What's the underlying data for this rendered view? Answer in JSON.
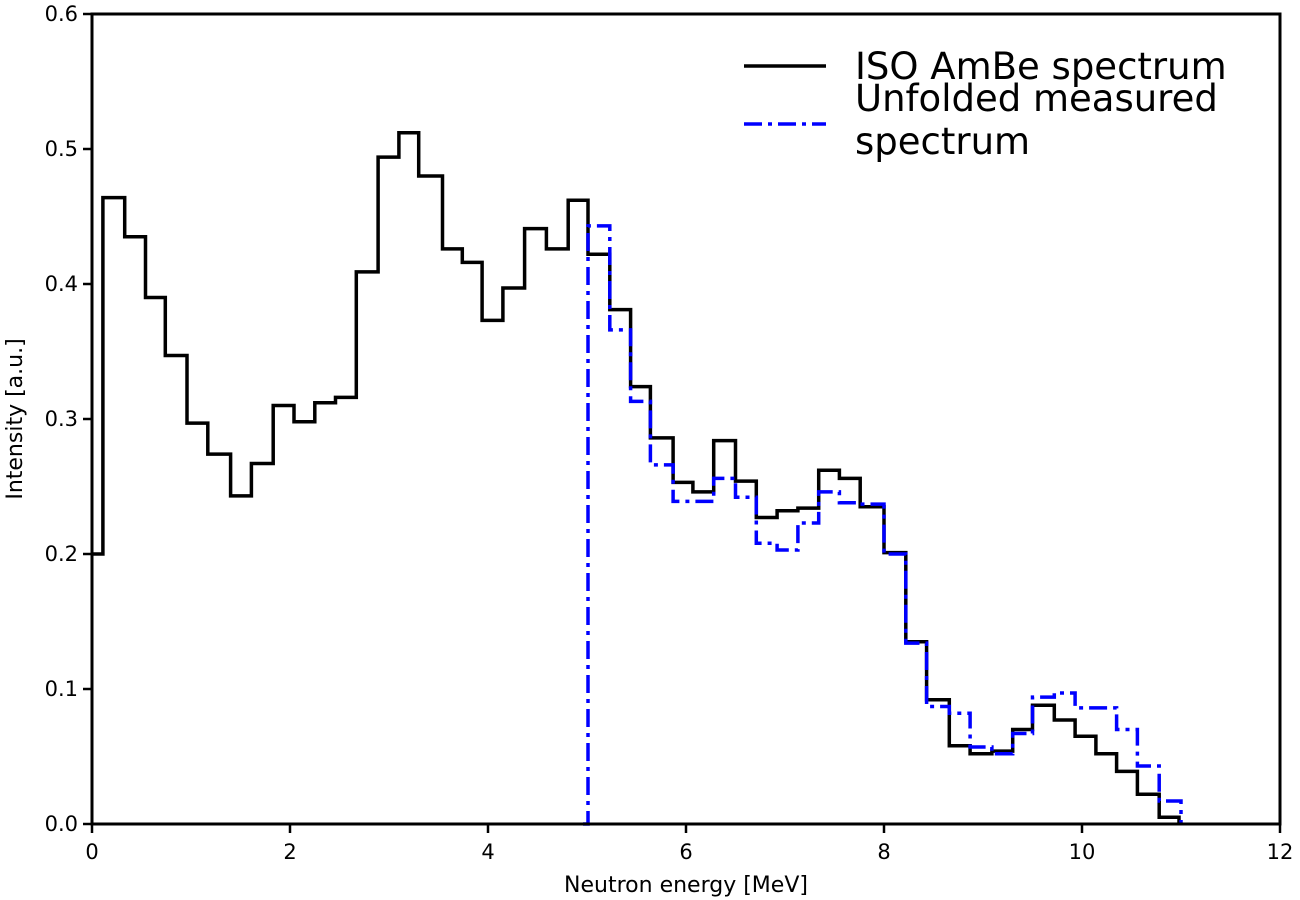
{
  "chart_data": {
    "type": "line",
    "step": "post",
    "xlabel": "Neutron energy [MeV]",
    "ylabel": "Intensity [a.u.]",
    "xlim": [
      0,
      12
    ],
    "ylim": [
      0,
      0.6
    ],
    "xticks": [
      0,
      2,
      4,
      6,
      8,
      10,
      12
    ],
    "yticks": [
      0.0,
      0.1,
      0.2,
      0.3,
      0.4,
      0.5,
      0.6
    ],
    "xtick_labels": [
      "0",
      "2",
      "4",
      "6",
      "8",
      "10",
      "12"
    ],
    "ytick_labels": [
      "0.0",
      "0.1",
      "0.2",
      "0.3",
      "0.4",
      "0.5",
      "0.6"
    ],
    "grid": false,
    "legend": "top-right",
    "series": [
      {
        "name": "ISO AmBe spectrum",
        "color": "#000000",
        "linestyle": "solid",
        "x": [
          0.0,
          0.11,
          0.33,
          0.54,
          0.74,
          0.96,
          1.17,
          1.4,
          1.61,
          1.83,
          2.04,
          2.25,
          2.46,
          2.67,
          2.89,
          3.1,
          3.3,
          3.54,
          3.74,
          3.94,
          4.15,
          4.37,
          4.59,
          4.81,
          5.01,
          5.23,
          5.44,
          5.64,
          5.87,
          6.07,
          6.28,
          6.5,
          6.71,
          6.92,
          7.13,
          7.34,
          7.55,
          7.76,
          8.0,
          8.22,
          8.43,
          8.66,
          8.87,
          9.09,
          9.3,
          9.5,
          9.72,
          9.93,
          10.14,
          10.35,
          10.56,
          10.78,
          10.98
        ],
        "y": [
          0.2,
          0.464,
          0.435,
          0.39,
          0.347,
          0.297,
          0.274,
          0.243,
          0.267,
          0.31,
          0.298,
          0.312,
          0.316,
          0.409,
          0.494,
          0.512,
          0.48,
          0.426,
          0.416,
          0.373,
          0.397,
          0.441,
          0.426,
          0.462,
          0.422,
          0.381,
          0.324,
          0.286,
          0.253,
          0.246,
          0.284,
          0.254,
          0.227,
          0.232,
          0.234,
          0.262,
          0.256,
          0.235,
          0.201,
          0.135,
          0.092,
          0.058,
          0.052,
          0.054,
          0.07,
          0.088,
          0.077,
          0.065,
          0.052,
          0.039,
          0.022,
          0.005,
          0.0
        ]
      },
      {
        "name": "Unfolded measured\nspectrum",
        "color": "#0000ff",
        "linestyle": "dashdot",
        "x": [
          4.96,
          5.01,
          5.23,
          5.44,
          5.64,
          5.87,
          6.07,
          6.28,
          6.5,
          6.71,
          6.92,
          7.13,
          7.34,
          7.55,
          7.76,
          8.0,
          8.22,
          8.43,
          8.66,
          8.87,
          9.09,
          9.3,
          9.5,
          9.72,
          9.93,
          10.14,
          10.35,
          10.56,
          10.78,
          11.0
        ],
        "y": [
          0.0,
          0.443,
          0.366,
          0.313,
          0.266,
          0.239,
          0.239,
          0.256,
          0.242,
          0.208,
          0.203,
          0.223,
          0.246,
          0.238,
          0.237,
          0.2,
          0.134,
          0.087,
          0.082,
          0.057,
          0.052,
          0.067,
          0.094,
          0.097,
          0.086,
          0.086,
          0.07,
          0.043,
          0.017,
          0.0
        ]
      }
    ]
  }
}
